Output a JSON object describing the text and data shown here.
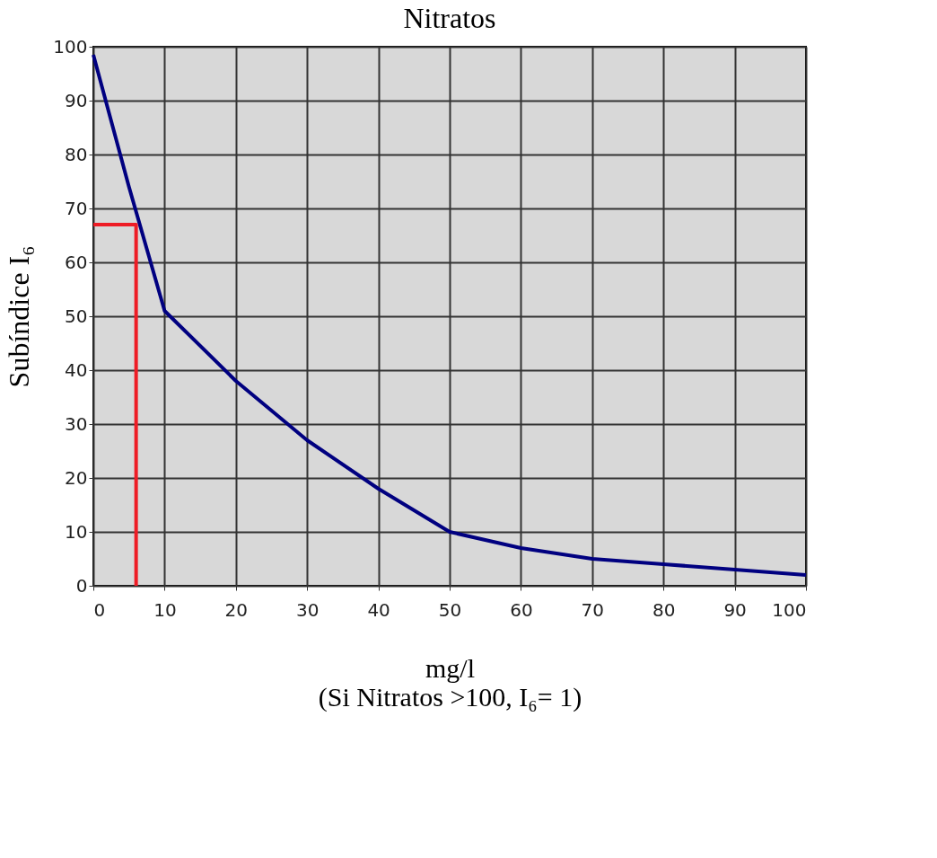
{
  "chart_data": {
    "type": "line",
    "title": "Nitratos",
    "xlabel": "mg/l",
    "ylabel": "Subíndice  I₆",
    "annotations": [
      "(Si Nitratos >100, I₆= 1)"
    ],
    "series": [
      {
        "color": "#000080",
        "x": [
          0,
          5,
          10,
          20,
          30,
          40,
          50,
          60,
          70,
          80,
          90,
          100
        ],
        "values": [
          98.5,
          74,
          51,
          38,
          27,
          18,
          10,
          7,
          5,
          4,
          3,
          2
        ]
      },
      {
        "color": "#ee1c25",
        "x": [
          0,
          6,
          6
        ],
        "values": [
          67,
          67,
          0
        ]
      }
    ],
    "xlim": [
      0,
      100
    ],
    "ylim": [
      0,
      100
    ],
    "xticks": [
      0,
      10,
      20,
      30,
      40,
      50,
      60,
      70,
      80,
      90,
      100
    ],
    "yticks": [
      0,
      10,
      20,
      30,
      40,
      50,
      60,
      70,
      80,
      90,
      100
    ],
    "grid": true,
    "marker": "none",
    "line_style": "solid"
  }
}
